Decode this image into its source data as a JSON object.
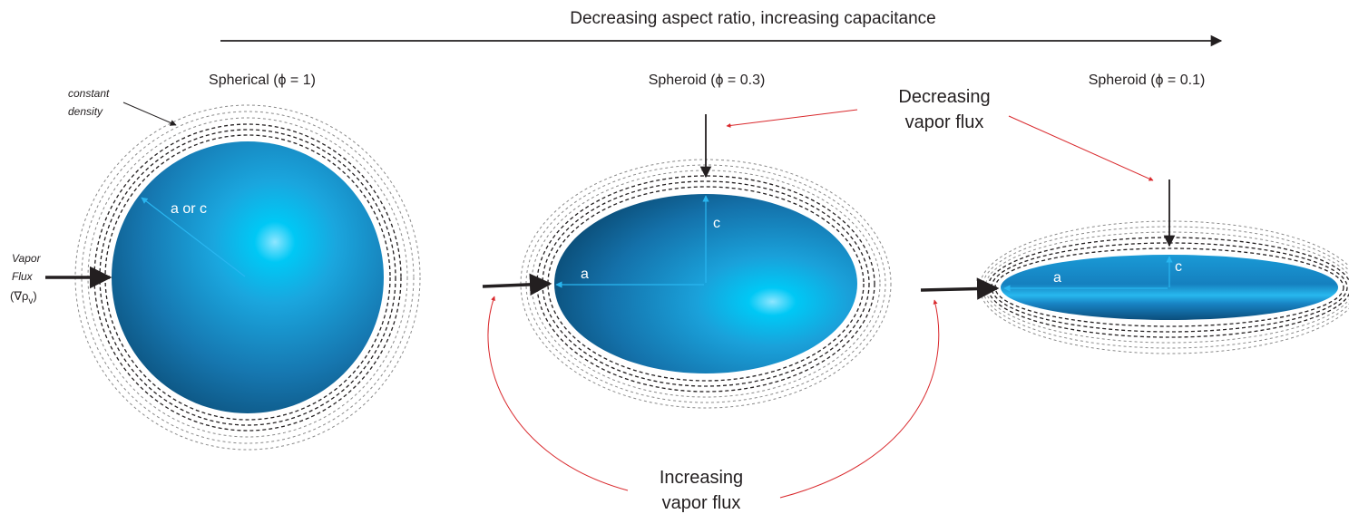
{
  "header": {
    "title": "Decreasing aspect ratio, increasing capacitance"
  },
  "shapes": [
    {
      "title": "Spherical (ϕ = 1)",
      "dim_label": "a or c"
    },
    {
      "title": "Spheroid (ϕ = 0.3)",
      "dim_a": "a",
      "dim_c": "c"
    },
    {
      "title": "Spheroid (ϕ = 0.1)",
      "dim_a": "a",
      "dim_c": "c"
    }
  ],
  "annotations": {
    "constant_density": [
      "constant",
      "density"
    ],
    "vapor_flux": [
      "Vapor",
      "Flux",
      "(∇ρ",
      "v",
      ")"
    ],
    "decreasing": [
      "Decreasing",
      "vapor flux"
    ],
    "increasing": [
      "Increasing",
      "vapor flux"
    ]
  },
  "colors": {
    "ellipsoid_dark": "#0b4f7a",
    "ellipsoid_mid": "#1a8fd0",
    "ellipsoid_highlight": "#00c8f5",
    "ellipsoid_glow": "#7fe0ff",
    "dim_line": "#29b6f0",
    "annotation_red": "#d9282c",
    "ink": "#231f20"
  }
}
